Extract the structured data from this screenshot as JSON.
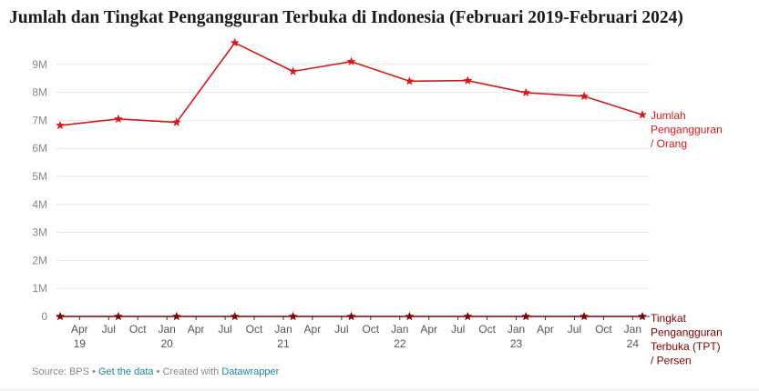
{
  "header": {
    "title": "Jumlah dan Tingkat Pengangguran Terbuka di Indonesia (Februari 2019-Februari 2024)"
  },
  "footer": {
    "source": "Source: BPS",
    "sep1": " • ",
    "get_data": "Get the data",
    "sep2": " • Created with ",
    "created_with": "Datawrapper"
  },
  "colors": {
    "series1": "#d7191c",
    "series2": "#7b0000",
    "grid": "#e5e5e5",
    "axis": "#333333",
    "link": "#1d81a2"
  },
  "chart_data": {
    "type": "line",
    "title": "Jumlah dan Tingkat Pengangguran Terbuka di Indonesia (Februari 2019-Februari 2024)",
    "x": [
      "2019-02",
      "2019-08",
      "2020-02",
      "2020-08",
      "2021-02",
      "2021-08",
      "2022-02",
      "2022-08",
      "2023-02",
      "2023-08",
      "2024-02"
    ],
    "x_range": [
      "2019-02",
      "2024-02"
    ],
    "ylim": [
      0,
      10000000
    ],
    "y_ticks": [
      {
        "value": 0,
        "label": "0"
      },
      {
        "value": 1000000,
        "label": "1M"
      },
      {
        "value": 2000000,
        "label": "2M"
      },
      {
        "value": 3000000,
        "label": "3M"
      },
      {
        "value": 4000000,
        "label": "4M"
      },
      {
        "value": 5000000,
        "label": "5M"
      },
      {
        "value": 6000000,
        "label": "6M"
      },
      {
        "value": 7000000,
        "label": "7M"
      },
      {
        "value": 8000000,
        "label": "8M"
      },
      {
        "value": 9000000,
        "label": "9M"
      }
    ],
    "x_ticks": [
      {
        "date": "2019-04",
        "label": "Apr",
        "year": "19"
      },
      {
        "date": "2019-07",
        "label": "Jul",
        "year": ""
      },
      {
        "date": "2019-10",
        "label": "Oct",
        "year": ""
      },
      {
        "date": "2020-01",
        "label": "Jan",
        "year": "20"
      },
      {
        "date": "2020-04",
        "label": "Apr",
        "year": ""
      },
      {
        "date": "2020-07",
        "label": "Jul",
        "year": ""
      },
      {
        "date": "2020-10",
        "label": "Oct",
        "year": ""
      },
      {
        "date": "2021-01",
        "label": "Jan",
        "year": "21"
      },
      {
        "date": "2021-04",
        "label": "Apr",
        "year": ""
      },
      {
        "date": "2021-07",
        "label": "Jul",
        "year": ""
      },
      {
        "date": "2021-10",
        "label": "Oct",
        "year": ""
      },
      {
        "date": "2022-01",
        "label": "Jan",
        "year": "22"
      },
      {
        "date": "2022-04",
        "label": "Apr",
        "year": ""
      },
      {
        "date": "2022-07",
        "label": "Jul",
        "year": ""
      },
      {
        "date": "2022-10",
        "label": "Oct",
        "year": ""
      },
      {
        "date": "2023-01",
        "label": "Jan",
        "year": "23"
      },
      {
        "date": "2023-04",
        "label": "Apr",
        "year": ""
      },
      {
        "date": "2023-07",
        "label": "Jul",
        "year": ""
      },
      {
        "date": "2023-10",
        "label": "Oct",
        "year": ""
      },
      {
        "date": "2024-01",
        "label": "Jan",
        "year": "24"
      }
    ],
    "grid": true,
    "marker": "star",
    "series": [
      {
        "name": "Jumlah Pengangguran / Orang",
        "label_lines": [
          "Jumlah",
          "Pengangguran",
          "/ Orang"
        ],
        "color": "#d7191c",
        "values": [
          6820000,
          7050000,
          6930000,
          9770000,
          8750000,
          9100000,
          8400000,
          8420000,
          7990000,
          7860000,
          7200000
        ]
      },
      {
        "name": "Tingkat Pengangguran Terbuka (TPT) / Persen",
        "label_lines": [
          "Tingkat",
          "Pengangguran",
          "Terbuka (TPT)",
          "/ Persen"
        ],
        "color": "#7b0000",
        "values": [
          5.0,
          5.23,
          4.94,
          7.07,
          6.26,
          6.49,
          5.83,
          5.86,
          5.45,
          5.32,
          4.82
        ]
      }
    ]
  }
}
